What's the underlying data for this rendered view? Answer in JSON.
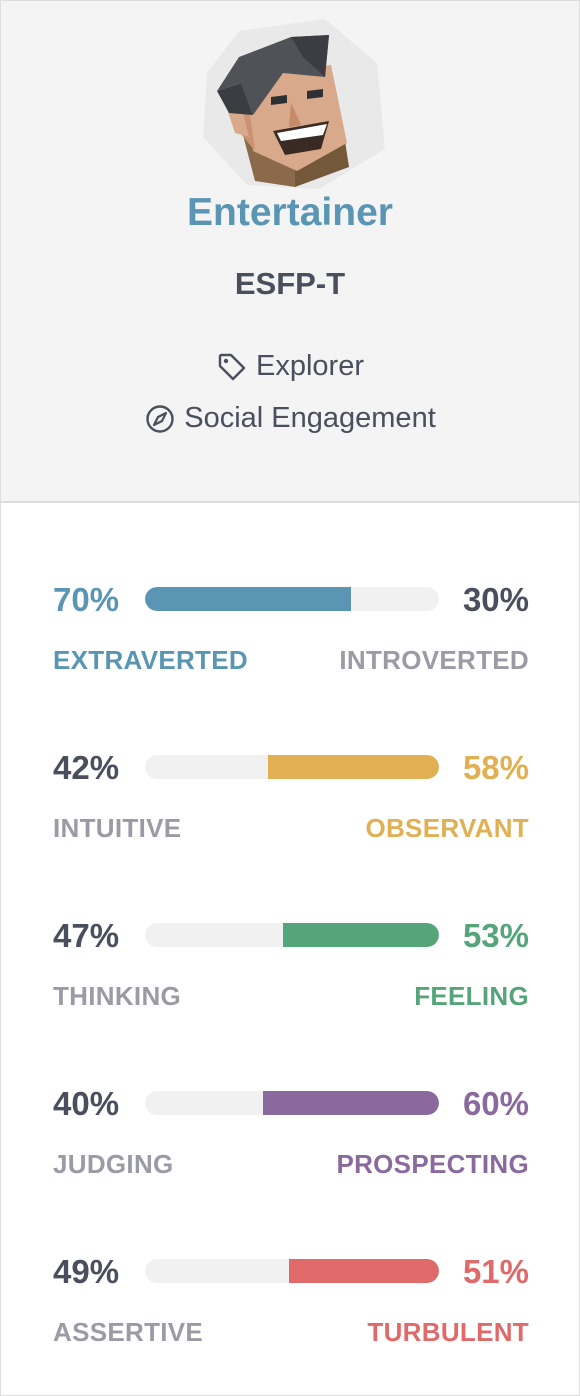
{
  "profile": {
    "type_name": "Entertainer",
    "type_code": "ESFP-T",
    "role": "Explorer",
    "strategy": "Social Engagement",
    "role_icon": "tag-icon",
    "strategy_icon": "compass-icon"
  },
  "traits": [
    {
      "left_pct": "70%",
      "right_pct": "30%",
      "left_label": "EXTRAVERTED",
      "right_label": "INTROVERTED",
      "dominant": "left",
      "value": 0.7,
      "color": "#5a96b4"
    },
    {
      "left_pct": "42%",
      "right_pct": "58%",
      "left_label": "INTUITIVE",
      "right_label": "OBSERVANT",
      "dominant": "right",
      "value": 0.58,
      "color": "#e0b052"
    },
    {
      "left_pct": "47%",
      "right_pct": "53%",
      "left_label": "THINKING",
      "right_label": "FEELING",
      "dominant": "right",
      "value": 0.53,
      "color": "#56a57a"
    },
    {
      "left_pct": "40%",
      "right_pct": "60%",
      "left_label": "JUDGING",
      "right_label": "PROSPECTING",
      "dominant": "right",
      "value": 0.6,
      "color": "#8a6a9e"
    },
    {
      "left_pct": "49%",
      "right_pct": "51%",
      "left_label": "ASSERTIVE",
      "right_label": "TURBULENT",
      "dominant": "right",
      "value": 0.51,
      "color": "#e06a6a"
    }
  ]
}
